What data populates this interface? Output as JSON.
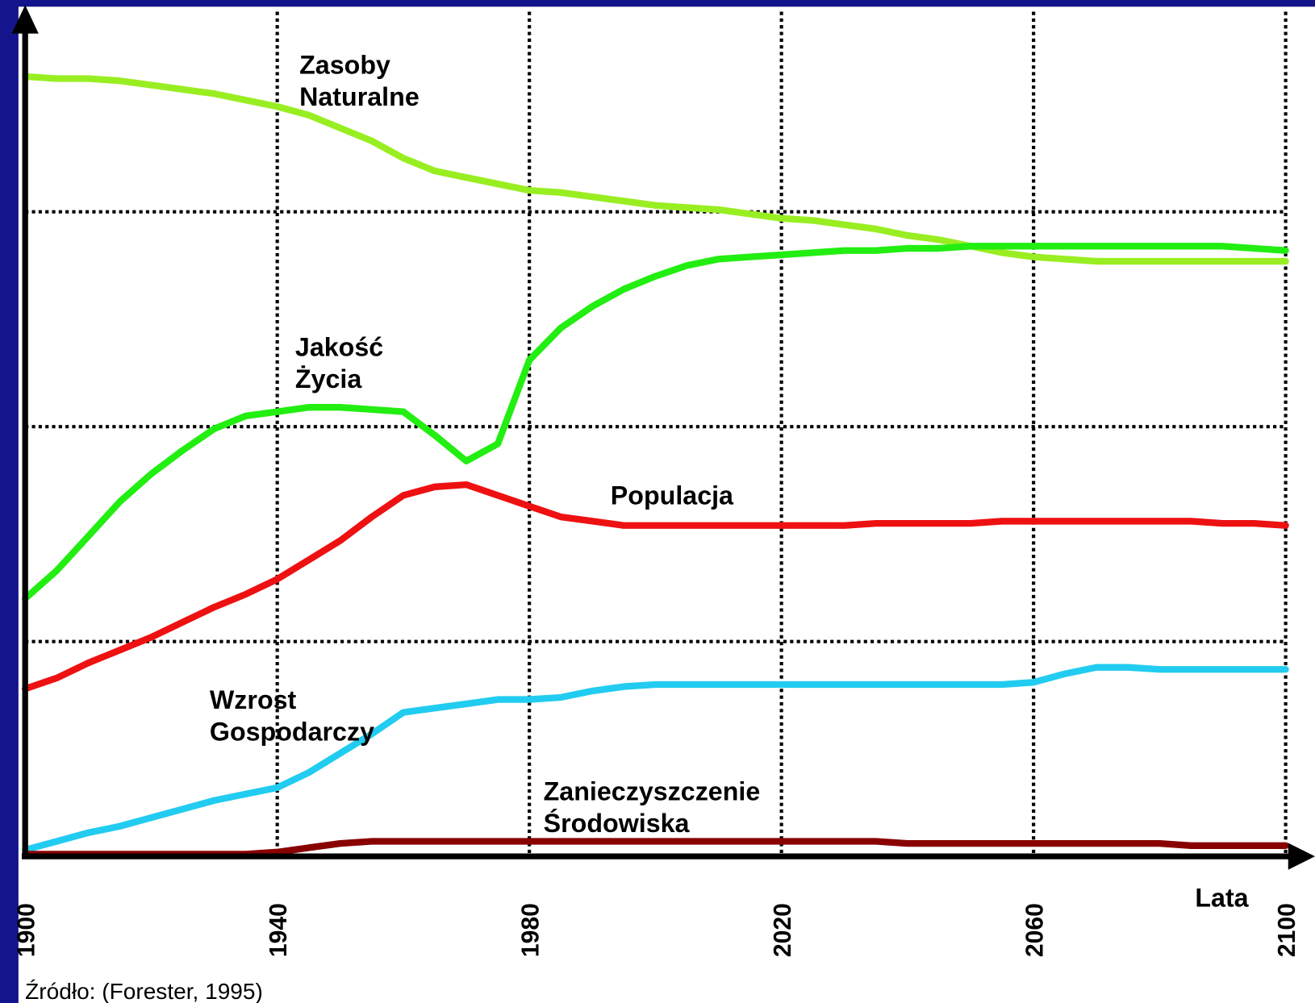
{
  "chart_data": {
    "type": "line",
    "x_label": "Lata",
    "source": "Źródło: (Forester, 1995)",
    "x": [
      1900,
      1905,
      1910,
      1915,
      1920,
      1925,
      1930,
      1935,
      1940,
      1945,
      1950,
      1955,
      1960,
      1965,
      1970,
      1975,
      1980,
      1985,
      1990,
      1995,
      2000,
      2005,
      2010,
      2015,
      2020,
      2025,
      2030,
      2035,
      2040,
      2045,
      2050,
      2055,
      2060,
      2065,
      2070,
      2075,
      2080,
      2085,
      2090,
      2095,
      2100
    ],
    "xlim": [
      1900,
      2100
    ],
    "xticks": [
      1900,
      1940,
      1980,
      2020,
      2060,
      2100
    ],
    "ylim": [
      0,
      3.9
    ],
    "ygrid": [
      1,
      2,
      3
    ],
    "grid": true,
    "series": [
      {
        "name": "Zasoby Naturalne",
        "color": "#99ee22",
        "values": [
          3.63,
          3.62,
          3.62,
          3.61,
          3.59,
          3.57,
          3.55,
          3.52,
          3.49,
          3.45,
          3.39,
          3.33,
          3.25,
          3.19,
          3.16,
          3.13,
          3.1,
          3.09,
          3.07,
          3.05,
          3.03,
          3.02,
          3.01,
          2.99,
          2.97,
          2.96,
          2.94,
          2.92,
          2.89,
          2.87,
          2.84,
          2.81,
          2.79,
          2.78,
          2.77,
          2.77,
          2.77,
          2.77,
          2.77,
          2.77,
          2.77
        ]
      },
      {
        "name": "Jakość Życia",
        "color": "#22ee11",
        "values": [
          1.2,
          1.33,
          1.49,
          1.65,
          1.78,
          1.89,
          1.99,
          2.05,
          2.07,
          2.09,
          2.09,
          2.08,
          2.07,
          1.96,
          1.84,
          1.92,
          2.31,
          2.46,
          2.56,
          2.64,
          2.7,
          2.75,
          2.78,
          2.79,
          2.8,
          2.81,
          2.82,
          2.82,
          2.83,
          2.83,
          2.84,
          2.84,
          2.84,
          2.84,
          2.84,
          2.84,
          2.84,
          2.84,
          2.84,
          2.83,
          2.82
        ]
      },
      {
        "name": "Populacja",
        "color": "#ee1111",
        "values": [
          0.78,
          0.83,
          0.9,
          0.96,
          1.02,
          1.09,
          1.16,
          1.22,
          1.29,
          1.38,
          1.47,
          1.58,
          1.68,
          1.72,
          1.73,
          1.68,
          1.63,
          1.58,
          1.56,
          1.54,
          1.54,
          1.54,
          1.54,
          1.54,
          1.54,
          1.54,
          1.54,
          1.55,
          1.55,
          1.55,
          1.55,
          1.56,
          1.56,
          1.56,
          1.56,
          1.56,
          1.56,
          1.56,
          1.55,
          1.55,
          1.54
        ]
      },
      {
        "name": "Wzrost Gospodarczy",
        "color": "#22ccf0",
        "values": [
          0.03,
          0.07,
          0.11,
          0.14,
          0.18,
          0.22,
          0.26,
          0.29,
          0.32,
          0.39,
          0.48,
          0.57,
          0.67,
          0.69,
          0.71,
          0.73,
          0.73,
          0.74,
          0.77,
          0.79,
          0.8,
          0.8,
          0.8,
          0.8,
          0.8,
          0.8,
          0.8,
          0.8,
          0.8,
          0.8,
          0.8,
          0.8,
          0.81,
          0.85,
          0.88,
          0.88,
          0.87,
          0.87,
          0.87,
          0.87,
          0.87
        ]
      },
      {
        "name": "Zanieczyszczenie Środowiska",
        "color": "#880000",
        "values": [
          0.01,
          0.01,
          0.01,
          0.01,
          0.01,
          0.01,
          0.01,
          0.01,
          0.02,
          0.04,
          0.06,
          0.07,
          0.07,
          0.07,
          0.07,
          0.07,
          0.07,
          0.07,
          0.07,
          0.07,
          0.07,
          0.07,
          0.07,
          0.07,
          0.07,
          0.07,
          0.07,
          0.07,
          0.06,
          0.06,
          0.06,
          0.06,
          0.06,
          0.06,
          0.06,
          0.06,
          0.06,
          0.05,
          0.05,
          0.05,
          0.05
        ]
      }
    ]
  }
}
